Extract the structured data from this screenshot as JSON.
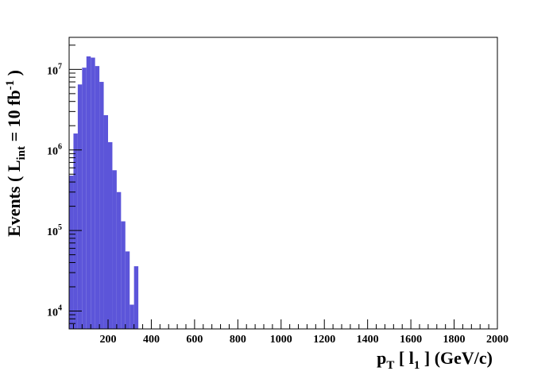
{
  "chart_data": {
    "type": "bar",
    "title": "",
    "xlabel": {
      "main": "p",
      "sub1": "T",
      "mid": " [ l",
      "sub2": "1",
      "tail": " ] (GeV/c)"
    },
    "ylabel": {
      "main": "Events  ( L",
      "sub": "int",
      "mid": " = 10 fb",
      "sup": "-1",
      "tail": " )"
    },
    "x_range": [
      20,
      2000
    ],
    "y_scale": "log",
    "y_range": [
      6000,
      25000000
    ],
    "x_tick_labels": [
      "200",
      "400",
      "600",
      "800",
      "1000",
      "1200",
      "1400",
      "1600",
      "1800",
      "2000"
    ],
    "y_tick_labels": [
      {
        "base": "10",
        "exp": "4"
      },
      {
        "base": "10",
        "exp": "5"
      },
      {
        "base": "10",
        "exp": "6"
      },
      {
        "base": "10",
        "exp": "7"
      }
    ],
    "grid": false,
    "legend": "none",
    "fill_color": "#5c55d9",
    "bin_width": 20,
    "bins": [
      {
        "x0": 20,
        "value": 480000
      },
      {
        "x0": 40,
        "value": 1600000
      },
      {
        "x0": 60,
        "value": 6500000
      },
      {
        "x0": 80,
        "value": 10500000
      },
      {
        "x0": 100,
        "value": 14500000
      },
      {
        "x0": 120,
        "value": 14000000
      },
      {
        "x0": 140,
        "value": 11000000
      },
      {
        "x0": 160,
        "value": 7000000
      },
      {
        "x0": 180,
        "value": 2700000
      },
      {
        "x0": 200,
        "value": 1250000
      },
      {
        "x0": 220,
        "value": 560000
      },
      {
        "x0": 240,
        "value": 300000
      },
      {
        "x0": 260,
        "value": 130000
      },
      {
        "x0": 280,
        "value": 55000
      },
      {
        "x0": 300,
        "value": 12000
      },
      {
        "x0": 320,
        "value": 36000
      }
    ]
  }
}
